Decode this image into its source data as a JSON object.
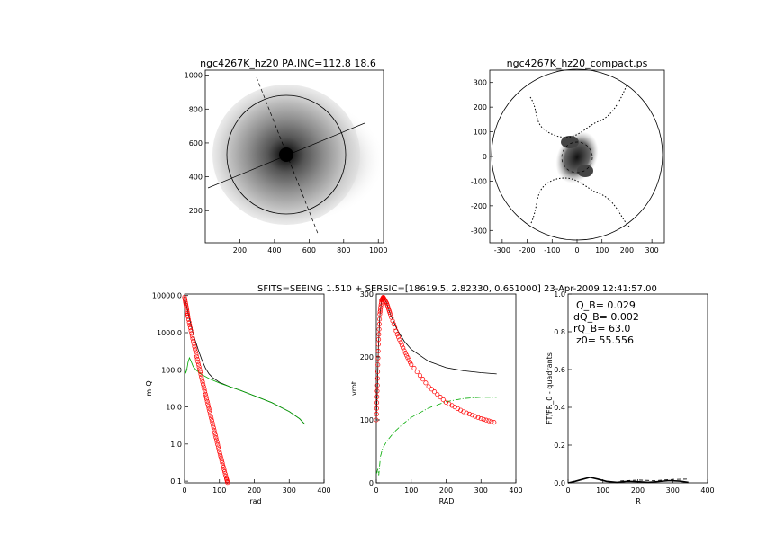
{
  "header": "SFITS=SEEING 1.510 + SERSIC=[18619.5, 2.82330, 0.651000]  23-Apr-2009 12:41:57.00",
  "chart_data": [
    {
      "id": "image_left",
      "type": "heatmap",
      "title": "ngc4267K_hz20 PA,INC=112.8 18.6",
      "xlim": [
        0,
        1030
      ],
      "ylim": [
        10,
        1030
      ],
      "xticks": [
        "200",
        "400",
        "600",
        "800",
        "1000"
      ],
      "yticks": [
        "200",
        "400",
        "600",
        "800",
        "1000"
      ],
      "xtick_values": [
        200,
        400,
        600,
        800,
        1000
      ],
      "ytick_values": [
        200,
        400,
        600,
        800,
        1000
      ],
      "center": [
        490,
        510
      ],
      "ellipse_radius": 340,
      "pa_deg": 112.8,
      "grid": false
    },
    {
      "id": "image_right",
      "type": "heatmap",
      "title": "ngc4267K_hz20_compact.ps",
      "xlim": [
        -350,
        350
      ],
      "ylim": [
        -350,
        350
      ],
      "xticks": [
        "-300",
        "-200",
        "-100",
        "0",
        "100",
        "200",
        "300"
      ],
      "yticks": [
        "-300",
        "-200",
        "-100",
        "0",
        "100",
        "200",
        "300"
      ],
      "tick_values": [
        -300,
        -200,
        -100,
        0,
        100,
        200,
        300
      ],
      "circle_radius": 340,
      "inner_circle_radius": 45,
      "grid": false
    },
    {
      "id": "surface_density",
      "type": "line",
      "ylabel": "m-Q",
      "xlabel": "rad",
      "log_y": true,
      "xlim": [
        0,
        400
      ],
      "ylim": [
        0.09,
        11000
      ],
      "xticks": [
        "0",
        "100",
        "200",
        "300",
        "400"
      ],
      "yticks": [
        "0.1",
        "1.0",
        "10.0",
        "100.0",
        "1000.0",
        "10000.0"
      ],
      "ytick_values": [
        0.1,
        1,
        10,
        100,
        1000,
        10000
      ],
      "series": [
        {
          "color": "#000000",
          "style": "solid",
          "points": [
            [
              0,
              9000
            ],
            [
              5,
              5800
            ],
            [
              10,
              3400
            ],
            [
              20,
              1400
            ],
            [
              30,
              650
            ],
            [
              40,
              330
            ],
            [
              50,
              180
            ],
            [
              60,
              110
            ],
            [
              70,
              78
            ],
            [
              80,
              62
            ],
            [
              100,
              46
            ],
            [
              130,
              35
            ],
            [
              160,
              28
            ],
            [
              200,
              20
            ],
            [
              250,
              13
            ],
            [
              300,
              7.5
            ],
            [
              330,
              4.8
            ],
            [
              345,
              3.4
            ]
          ]
        },
        {
          "color": "#00aa00",
          "style": "solid",
          "points": [
            [
              1,
              120
            ],
            [
              3,
              80
            ],
            [
              6,
              95
            ],
            [
              10,
              160
            ],
            [
              14,
              210
            ],
            [
              18,
              175
            ],
            [
              25,
              120
            ],
            [
              35,
              95
            ],
            [
              50,
              74
            ],
            [
              70,
              58
            ],
            [
              100,
              44
            ],
            [
              130,
              35
            ],
            [
              160,
              28
            ],
            [
              200,
              20
            ],
            [
              250,
              13
            ],
            [
              300,
              7.5
            ],
            [
              330,
              4.8
            ],
            [
              345,
              3.4
            ]
          ]
        },
        {
          "color": "#ff0000",
          "style": "markers",
          "points": [
            [
              0,
              9000
            ],
            [
              5,
              5000
            ],
            [
              10,
              2700
            ],
            [
              20,
              950
            ],
            [
              30,
              360
            ],
            [
              40,
              140
            ],
            [
              50,
              55
            ],
            [
              60,
              22
            ],
            [
              70,
              9
            ],
            [
              80,
              3.7
            ],
            [
              90,
              1.5
            ],
            [
              100,
              0.62
            ],
            [
              110,
              0.27
            ],
            [
              120,
              0.12
            ],
            [
              125,
              0.08
            ]
          ]
        }
      ]
    },
    {
      "id": "rotation_curve",
      "type": "line",
      "ylabel": "vrot",
      "xlabel": "RAD",
      "xlim": [
        0,
        400
      ],
      "ylim": [
        0,
        300
      ],
      "xticks": [
        "0",
        "100",
        "200",
        "300",
        "400"
      ],
      "yticks": [
        "0",
        "100",
        "200",
        "300"
      ],
      "ytick_values": [
        0,
        100,
        200,
        300
      ],
      "series": [
        {
          "color": "#000000",
          "style": "solid",
          "points": [
            [
              0,
              100
            ],
            [
              3,
              150
            ],
            [
              6,
              215
            ],
            [
              10,
              265
            ],
            [
              15,
              290
            ],
            [
              20,
              296
            ],
            [
              30,
              285
            ],
            [
              40,
              268
            ],
            [
              60,
              243
            ],
            [
              80,
              225
            ],
            [
              100,
              212
            ],
            [
              150,
              193
            ],
            [
              200,
              183
            ],
            [
              250,
              178
            ],
            [
              300,
              175
            ],
            [
              345,
              173
            ]
          ]
        },
        {
          "color": "#00aa00",
          "style": "dashdot",
          "points": [
            [
              1,
              15
            ],
            [
              4,
              22
            ],
            [
              7,
              12
            ],
            [
              12,
              42
            ],
            [
              18,
              55
            ],
            [
              30,
              66
            ],
            [
              50,
              80
            ],
            [
              75,
              93
            ],
            [
              100,
              104
            ],
            [
              150,
              119
            ],
            [
              200,
              129
            ],
            [
              250,
              134
            ],
            [
              300,
              136
            ],
            [
              345,
              136
            ]
          ]
        },
        {
          "color": "#ff0000",
          "style": "markers",
          "points": [
            [
              0,
              100
            ],
            [
              3,
              155
            ],
            [
              6,
              220
            ],
            [
              10,
              268
            ],
            [
              15,
              290
            ],
            [
              20,
              295
            ],
            [
              30,
              285
            ],
            [
              40,
              268
            ],
            [
              60,
              236
            ],
            [
              80,
              210
            ],
            [
              100,
              188
            ],
            [
              150,
              153
            ],
            [
              200,
              128
            ],
            [
              250,
              113
            ],
            [
              300,
              102
            ],
            [
              345,
              95
            ]
          ]
        }
      ]
    },
    {
      "id": "ft_quadrants",
      "type": "line",
      "ylabel": "FT/FR_0 - quadrants",
      "xlabel": "R",
      "xlim": [
        0,
        400
      ],
      "ylim": [
        0,
        1.0
      ],
      "xticks": [
        "0",
        "100",
        "200",
        "300",
        "400"
      ],
      "yticks": [
        "0.0",
        "0.2",
        "0.4",
        "0.6",
        "0.8",
        "1.0"
      ],
      "ytick_values": [
        0,
        0.2,
        0.4,
        0.6,
        0.8,
        1.0
      ],
      "annotations": [
        "Q_B=  0.029",
        "dQ_B=  0.002",
        "rQ_B=   63.0",
        "z0= 55.556"
      ],
      "series": [
        {
          "color": "#000000",
          "style": "thick",
          "points": [
            [
              0,
              0
            ],
            [
              20,
              0.008
            ],
            [
              40,
              0.018
            ],
            [
              63,
              0.029
            ],
            [
              85,
              0.02
            ],
            [
              110,
              0.008
            ],
            [
              140,
              0.003
            ],
            [
              170,
              0.008
            ],
            [
              200,
              0.006
            ],
            [
              230,
              0.003
            ],
            [
              260,
              0.007
            ],
            [
              290,
              0.012
            ],
            [
              320,
              0.009
            ],
            [
              345,
              0.003
            ]
          ]
        },
        {
          "color": "#000000",
          "style": "dashed",
          "points": [
            [
              150,
              0.01
            ],
            [
              200,
              0.015
            ],
            [
              250,
              0.012
            ],
            [
              300,
              0.018
            ],
            [
              345,
              0.02
            ]
          ]
        }
      ]
    }
  ]
}
